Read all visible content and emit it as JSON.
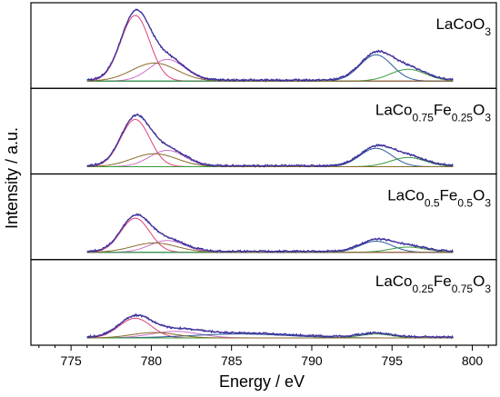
{
  "chart_data": {
    "type": "line",
    "xlabel": "Energy / eV",
    "ylabel": "Intensity / a.u.",
    "xlim": [
      772.5,
      801.5
    ],
    "xticks": [
      775,
      780,
      785,
      790,
      795,
      800
    ],
    "y_ticks_shown": false,
    "grid": false,
    "legend": "none",
    "colors": {
      "measured": "#2a2a9a",
      "envelope": "#8a5aa8",
      "main_peak": "#e0407a",
      "shoulder": "#cc70c8",
      "satellite_2p3": "#8a6a2a",
      "peak_2p1_main": "#2a5a9a",
      "peak_2p1_sat": "#3a9a3a",
      "baseline": "#30b030"
    },
    "panels": [
      {
        "label_parts": [
          {
            "text": "LaCoO",
            "sub": false
          },
          {
            "text": "3",
            "sub": true
          }
        ],
        "components": [
          {
            "center": 779.0,
            "amplitude": 1.0,
            "width": 0.9
          },
          {
            "center": 781.0,
            "amplitude": 0.33,
            "width": 1.1
          },
          {
            "center": 794.0,
            "amplitude": 0.4,
            "width": 1.0
          },
          {
            "center": 796.0,
            "amplitude": 0.18,
            "width": 1.1
          }
        ]
      },
      {
        "label_parts": [
          {
            "text": "LaCo",
            "sub": false
          },
          {
            "text": "0.75",
            "sub": true
          },
          {
            "text": "Fe",
            "sub": false
          },
          {
            "text": "0.25",
            "sub": true
          },
          {
            "text": "O",
            "sub": false
          },
          {
            "text": "3",
            "sub": true
          }
        ],
        "components": [
          {
            "center": 779.0,
            "amplitude": 0.72,
            "width": 0.9
          },
          {
            "center": 781.0,
            "amplitude": 0.25,
            "width": 1.1
          },
          {
            "center": 794.0,
            "amplitude": 0.28,
            "width": 1.0
          },
          {
            "center": 796.0,
            "amplitude": 0.14,
            "width": 1.1
          }
        ]
      },
      {
        "label_parts": [
          {
            "text": "LaCo",
            "sub": false
          },
          {
            "text": "0.5",
            "sub": true
          },
          {
            "text": "Fe",
            "sub": false
          },
          {
            "text": "0.5",
            "sub": true
          },
          {
            "text": "O",
            "sub": false
          },
          {
            "text": "3",
            "sub": true
          }
        ],
        "components": [
          {
            "center": 779.0,
            "amplitude": 0.52,
            "width": 0.9
          },
          {
            "center": 781.0,
            "amplitude": 0.18,
            "width": 1.1
          },
          {
            "center": 794.0,
            "amplitude": 0.17,
            "width": 1.0
          },
          {
            "center": 796.0,
            "amplitude": 0.08,
            "width": 1.1
          }
        ]
      },
      {
        "label_parts": [
          {
            "text": "LaCo",
            "sub": false
          },
          {
            "text": "0.25",
            "sub": true
          },
          {
            "text": "Fe",
            "sub": false
          },
          {
            "text": "0.75",
            "sub": true
          },
          {
            "text": "O",
            "sub": false
          },
          {
            "text": "3",
            "sub": true
          }
        ],
        "components": [
          {
            "center": 779.0,
            "amplitude": 0.3,
            "width": 1.0
          },
          {
            "center": 781.5,
            "amplitude": 0.1,
            "width": 1.5
          },
          {
            "center": 785.5,
            "amplitude": 0.06,
            "width": 3.0
          },
          {
            "center": 794.0,
            "amplitude": 0.06,
            "width": 1.0
          }
        ]
      }
    ]
  }
}
